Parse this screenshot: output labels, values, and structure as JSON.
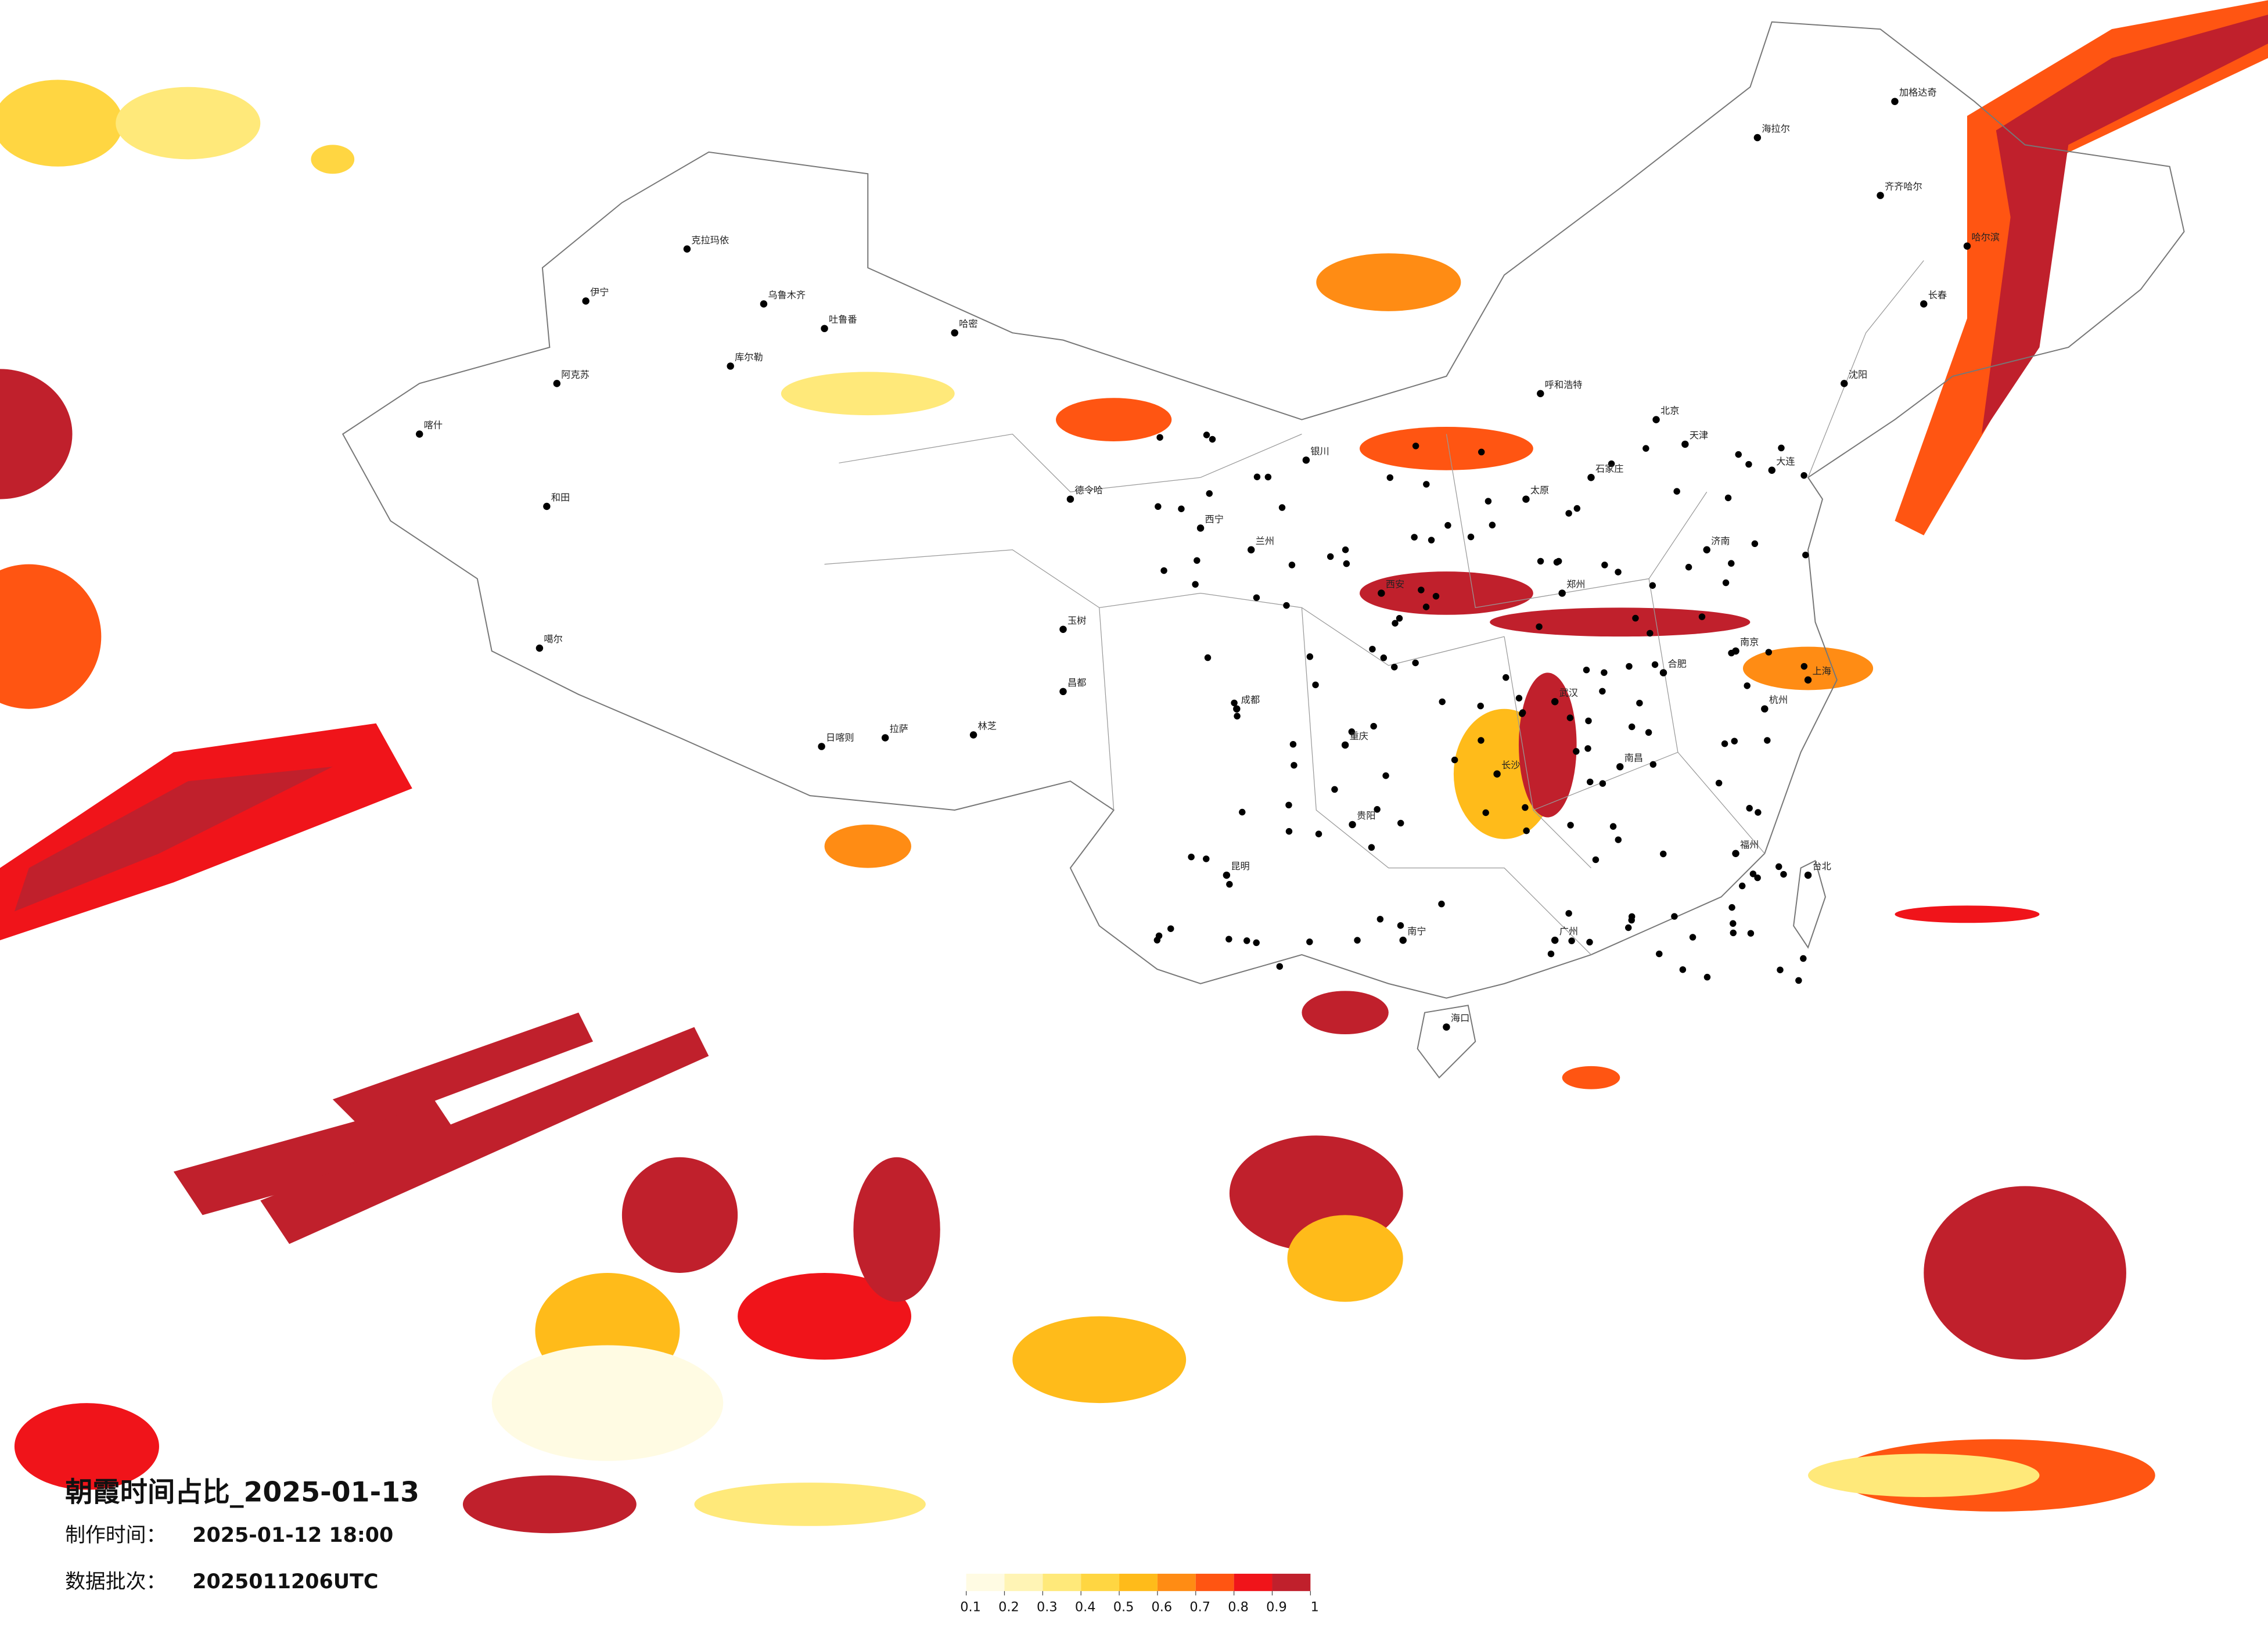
{
  "header": {
    "title": "朝霞时间占比_2025-01-13",
    "made_label": "制作时间：",
    "made_time": "2025-01-12 18:00",
    "batch_label": "数据批次：",
    "batch": "2025011206UTC"
  },
  "legend": {
    "colors": [
      "#fffbe3",
      "#fff4b5",
      "#ffe97a",
      "#ffd642",
      "#ffbb1a",
      "#ff8c14",
      "#ff5512",
      "#f0141a",
      "#c0202c"
    ],
    "ticks": [
      0.1,
      0.2,
      0.3,
      0.4,
      0.5,
      0.6,
      0.7,
      0.8,
      0.9,
      1
    ]
  },
  "cities": [
    "克拉玛依",
    "伊宁",
    "乌鲁木齐",
    "吐鲁番",
    "哈密",
    "阿克苏",
    "库尔勒",
    "喀什",
    "和田",
    "噶尔",
    "日喀则",
    "拉萨",
    "林芝",
    "昌都",
    "玉树",
    "德令哈",
    "西宁",
    "兰州",
    "银川",
    "呼和浩特",
    "北京",
    "天津",
    "石家庄",
    "太原",
    "济南",
    "郑州",
    "西安",
    "成都",
    "重庆",
    "贵阳",
    "昆明",
    "南宁",
    "广州",
    "长沙",
    "武汉",
    "南昌",
    "合肥",
    "南京",
    "上海",
    "杭州",
    "福州",
    "台北",
    "海口",
    "沈阳",
    "长春",
    "哈尔滨",
    "加格达奇",
    "海拉尔",
    "齐齐哈尔",
    "大连"
  ]
}
